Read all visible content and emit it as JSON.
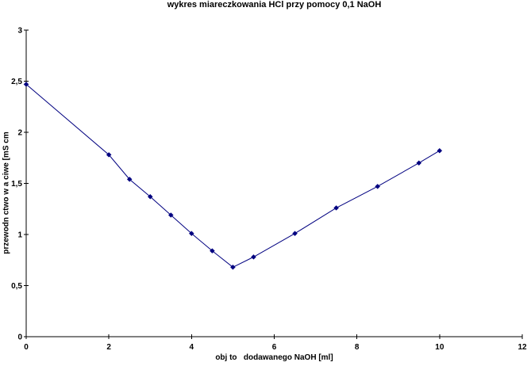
{
  "chart_data": {
    "type": "line",
    "title": "wykres miareczkowania HCl przy pomocy 0,1 NaOH",
    "xlabel": "obj to   dodawanego NaOH [ml]",
    "ylabel": "przewodn ctwo w a ciwe [mS cm",
    "x": [
      0,
      2,
      2.5,
      3,
      3.5,
      4,
      4.5,
      5,
      5.5,
      6.5,
      7.5,
      8.5,
      9.5,
      10
    ],
    "y": [
      2.47,
      1.78,
      1.54,
      1.37,
      1.19,
      1.01,
      0.84,
      0.68,
      0.78,
      1.01,
      1.26,
      1.47,
      1.7,
      1.82
    ],
    "xlim": [
      0,
      12
    ],
    "ylim": [
      0,
      3
    ],
    "x_ticks": {
      "values": [
        0,
        2,
        4,
        6,
        8,
        10,
        12
      ],
      "labels": [
        "0",
        "2",
        "4",
        "6",
        "8",
        "10",
        "12"
      ]
    },
    "y_ticks": {
      "values": [
        0,
        0.5,
        1,
        1.5,
        2,
        2.5,
        3
      ],
      "labels": [
        "0",
        "0,5",
        "1",
        "1,5",
        "2",
        "2,5",
        "3"
      ]
    },
    "grid": false,
    "legend": false,
    "line_color": "#000080",
    "marker": "diamond",
    "marker_color": "#000080",
    "axis_color": "#000000",
    "background_color": "#ffffff"
  }
}
